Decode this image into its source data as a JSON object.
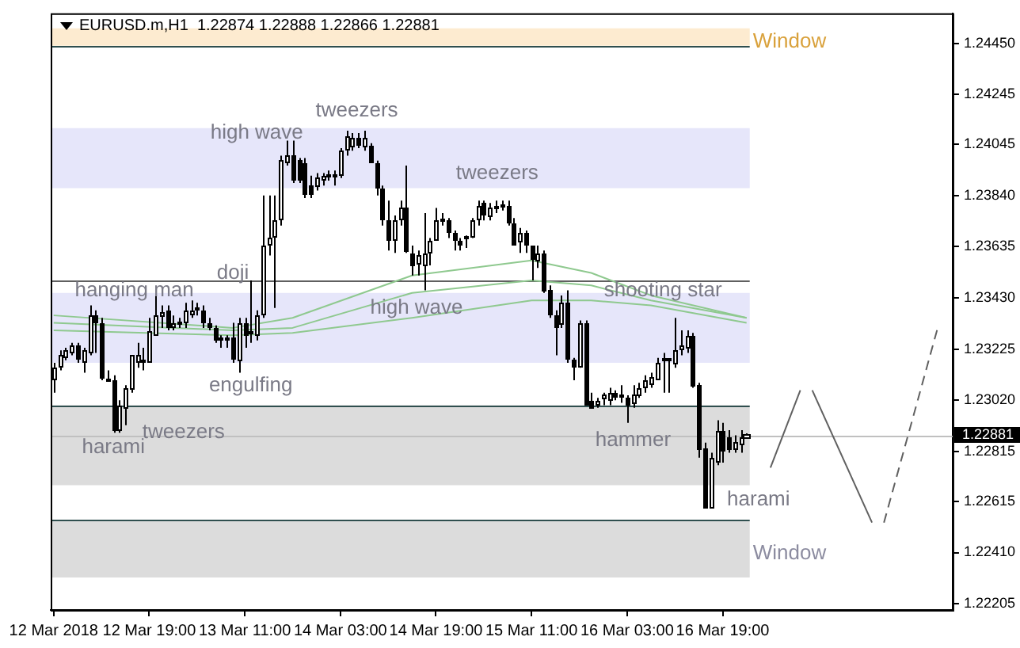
{
  "chart_data": {
    "type": "candlestick",
    "title": "EURUSD.m,H1  1.22874 1.22888 1.22866 1.22881",
    "color": "#000000",
    "colors": [
      "#ffffff",
      "#ffffff",
      "#ffffff",
      "#ffffff",
      "#000000",
      "#ffffff",
      "#ffffff",
      "#000000",
      "#000000",
      "#000000",
      "#000000",
      "#ffffff",
      "#ffffff",
      "#ffffff",
      "#ffffff",
      "#000000",
      "#ffffff",
      "#ffffff",
      "#ffffff",
      "#000000",
      "#ffffff",
      "#000000",
      "#ffffff",
      "#ffffff",
      "#000000",
      "#000000",
      "#000000",
      "#000000",
      "#000000",
      "#000000",
      "#000000",
      "#ffffff",
      "#000000",
      "#000000",
      "#ffffff",
      "#ffffff",
      "#ffffff",
      "#ffffff",
      "#ffffff",
      "#ffffff",
      "#000000",
      "#000000",
      "#000000",
      "#000000",
      "#ffffff",
      "#ffffff",
      "#000000",
      "#000000",
      "#ffffff",
      "#ffffff",
      "#ffffff",
      "#000000",
      "#ffffff",
      "#000000",
      "#000000",
      "#000000",
      "#000000",
      "#ffffff",
      "#ffffff",
      "#000000",
      "#000000",
      "#ffffff",
      "#ffffff",
      "#ffffff",
      "#ffffff",
      "#000000",
      "#000000",
      "#000000",
      "#000000",
      "#000000",
      "#ffffff",
      "#ffffff",
      "#000000",
      "#ffffff",
      "#000000",
      "#000000",
      "#000000",
      "#000000",
      "#ffffff",
      "#000000",
      "#000000",
      "#ffffff",
      "#000000",
      "#000000",
      "#000000",
      "#ffffff",
      "#000000",
      "#000000",
      "#ffffff",
      "#000000",
      "#000000",
      "#ffffff",
      "#ffffff",
      "#ffffff",
      "#000000",
      "#000000",
      "#000000",
      "#ffffff",
      "#ffffff",
      "#ffffff",
      "#ffffff",
      "#ffffff",
      "#000000",
      "#000000",
      "#ffffff",
      "#ffffff",
      "#ffffff",
      "#000000",
      "#000000",
      "#000000",
      "#ffffff",
      "#ffffff",
      "#000000",
      "#000000",
      "#ffffff",
      "#ffffff",
      "#ffffff",
      null,
      null,
      null,
      null,
      null,
      null,
      null,
      null,
      null,
      null,
      null,
      null,
      null,
      null,
      null,
      null,
      null,
      null,
      null,
      null,
      null,
      null,
      null,
      null,
      null,
      null,
      null,
      null,
      null,
      null,
      null,
      null,
      null,
      null
    ],
    "categories": [
      "12 Mar 2018",
      null,
      null,
      null,
      null,
      null,
      null,
      null,
      null,
      null,
      null,
      null,
      null,
      null,
      null,
      null,
      "12 Mar 19:00",
      null,
      null,
      null,
      null,
      null,
      null,
      null,
      null,
      null,
      null,
      null,
      null,
      null,
      null,
      null,
      "13 Mar 11:00",
      null,
      null,
      null,
      null,
      null,
      null,
      null,
      null,
      null,
      null,
      null,
      null,
      null,
      null,
      null,
      "14 Mar 03:00",
      null,
      null,
      null,
      null,
      null,
      null,
      null,
      null,
      null,
      null,
      null,
      null,
      null,
      null,
      null,
      "14 Mar 19:00",
      null,
      null,
      null,
      null,
      null,
      null,
      null,
      null,
      null,
      null,
      null,
      null,
      null,
      null,
      null,
      "15 Mar 11:00",
      null,
      null,
      null,
      null,
      null,
      null,
      null,
      null,
      null,
      null,
      null,
      null,
      null,
      null,
      null,
      "16 Mar 03:00",
      null,
      null,
      null,
      null,
      null,
      null,
      null,
      null,
      null,
      null,
      null,
      null,
      null,
      null,
      null,
      "16 Mar 19:00",
      null,
      null,
      null,
      null,
      null,
      null,
      null,
      null,
      null,
      null,
      null,
      null,
      null,
      null,
      null,
      null,
      null,
      null,
      null,
      null,
      null,
      null,
      null,
      null,
      null,
      null,
      null,
      null,
      null,
      null,
      null,
      null,
      null,
      null,
      null,
      null,
      null,
      null
    ],
    "ohlc": [
      [
        1.231,
        1.2317,
        1.2305,
        1.2315
      ],
      [
        1.2315,
        1.2322,
        1.2314,
        1.232
      ],
      [
        1.2319,
        1.2323,
        1.2318,
        1.2322
      ],
      [
        1.2321,
        1.2325,
        1.232,
        1.2324
      ],
      [
        1.2324,
        1.2325,
        1.2317,
        1.2318
      ],
      [
        1.2317,
        1.2323,
        1.2313,
        1.2322
      ],
      [
        1.2321,
        1.234,
        1.232,
        1.2336
      ],
      [
        1.2336,
        1.2338,
        1.2321,
        1.2333
      ],
      [
        1.2333,
        1.2335,
        1.231,
        1.2311
      ],
      [
        1.231,
        1.2314,
        1.231,
        1.231
      ],
      [
        1.231,
        1.2312,
        1.2289,
        1.229
      ],
      [
        1.229,
        1.2302,
        1.2289,
        1.23
      ],
      [
        1.2299,
        1.2308,
        1.2292,
        1.2307
      ],
      [
        1.2306,
        1.232,
        1.2305,
        1.232
      ],
      [
        1.2317,
        1.2325,
        1.2315,
        1.232
      ],
      [
        1.2318,
        1.2323,
        1.2314,
        1.2317
      ],
      [
        1.2317,
        1.2335,
        1.2317,
        1.233
      ],
      [
        1.2328,
        1.2344,
        1.2328,
        1.2336
      ],
      [
        1.2335,
        1.234,
        1.2331,
        1.2337
      ],
      [
        1.2338,
        1.234,
        1.233,
        1.2331
      ],
      [
        1.2331,
        1.2336,
        1.233,
        1.2333
      ],
      [
        1.2333,
        1.2335,
        1.2331,
        1.2333
      ],
      [
        1.2333,
        1.2341,
        1.2331,
        1.2338
      ],
      [
        1.2336,
        1.2342,
        1.2335,
        1.2338
      ],
      [
        1.2339,
        1.2341,
        1.2336,
        1.2338
      ],
      [
        1.2338,
        1.234,
        1.2331,
        1.2333
      ],
      [
        1.2333,
        1.2335,
        1.233,
        1.2331
      ],
      [
        1.2331,
        1.2332,
        1.2325,
        1.2326
      ],
      [
        1.2327,
        1.2328,
        1.2323,
        1.2326
      ],
      [
        1.2327,
        1.2328,
        1.2323,
        1.2326
      ],
      [
        1.2327,
        1.2333,
        1.2317,
        1.2318
      ],
      [
        1.2318,
        1.2335,
        1.2313,
        1.2333
      ],
      [
        1.2333,
        1.2335,
        1.2323,
        1.2328
      ],
      [
        1.2329,
        1.235,
        1.2325,
        1.2329
      ],
      [
        1.2328,
        1.2338,
        1.2326,
        1.2336
      ],
      [
        1.2336,
        1.2384,
        1.2335,
        1.2364
      ],
      [
        1.2364,
        1.2384,
        1.236,
        1.2367
      ],
      [
        1.2367,
        1.2384,
        1.2339,
        1.2374
      ],
      [
        1.2374,
        1.24,
        1.2372,
        1.2398
      ],
      [
        1.2397,
        1.2406,
        1.2396,
        1.24
      ],
      [
        1.24,
        1.2406,
        1.2389,
        1.239
      ],
      [
        1.2398,
        1.2399,
        1.2389,
        1.239
      ],
      [
        1.2397,
        1.2399,
        1.2383,
        1.2384
      ],
      [
        1.2388,
        1.2392,
        1.2383,
        1.2384
      ],
      [
        1.2387,
        1.2393,
        1.2386,
        1.2391
      ],
      [
        1.239,
        1.2393,
        1.2388,
        1.2392
      ],
      [
        1.2392,
        1.2394,
        1.239,
        1.2392
      ],
      [
        1.2392,
        1.2394,
        1.2388,
        1.2392
      ],
      [
        1.2392,
        1.2403,
        1.2391,
        1.2402
      ],
      [
        1.2402,
        1.241,
        1.24,
        1.2408
      ],
      [
        1.2403,
        1.2409,
        1.2402,
        1.2407
      ],
      [
        1.2407,
        1.2409,
        1.2403,
        1.2404
      ],
      [
        1.2403,
        1.241,
        1.2402,
        1.2407
      ],
      [
        1.2404,
        1.2405,
        1.2397,
        1.2397
      ],
      [
        1.2397,
        1.2398,
        1.2384,
        1.2387
      ],
      [
        1.2387,
        1.2388,
        1.2372,
        1.2374
      ],
      [
        1.2374,
        1.2382,
        1.2362,
        1.2366
      ],
      [
        1.2366,
        1.2376,
        1.2361,
        1.2374
      ],
      [
        1.2374,
        1.2382,
        1.2372,
        1.2379
      ],
      [
        1.2379,
        1.2396,
        1.2361,
        1.2361
      ],
      [
        1.2361,
        1.2364,
        1.2352,
        1.2356
      ],
      [
        1.2356,
        1.2362,
        1.2352,
        1.236
      ],
      [
        1.2356,
        1.2377,
        1.2346,
        1.2361
      ],
      [
        1.2361,
        1.2367,
        1.2356,
        1.2366
      ],
      [
        1.2366,
        1.2379,
        1.2366,
        1.2374
      ],
      [
        1.2374,
        1.2377,
        1.2372,
        1.2374
      ],
      [
        1.2374,
        1.2375,
        1.2367,
        1.2369
      ],
      [
        1.2369,
        1.237,
        1.2362,
        1.2366
      ],
      [
        1.2366,
        1.2367,
        1.2362,
        1.2364
      ],
      [
        1.2367,
        1.2368,
        1.2363,
        1.2367
      ],
      [
        1.2367,
        1.2375,
        1.2367,
        1.2374
      ],
      [
        1.2374,
        1.2382,
        1.2372,
        1.238
      ],
      [
        1.2381,
        1.2382,
        1.2374,
        1.2376
      ],
      [
        1.2375,
        1.2381,
        1.2374,
        1.2379
      ],
      [
        1.2379,
        1.2382,
        1.2377,
        1.2379
      ],
      [
        1.238,
        1.2382,
        1.2378,
        1.238
      ],
      [
        1.238,
        1.2382,
        1.2372,
        1.2373
      ],
      [
        1.2373,
        1.2375,
        1.2364,
        1.2364
      ],
      [
        1.2365,
        1.2371,
        1.2361,
        1.2369
      ],
      [
        1.2369,
        1.237,
        1.2361,
        1.2364
      ],
      [
        1.2364,
        1.2364,
        1.235,
        1.2358
      ],
      [
        1.2358,
        1.2364,
        1.2355,
        1.2361
      ],
      [
        1.2361,
        1.2362,
        1.2345,
        1.2346
      ],
      [
        1.2346,
        1.2348,
        1.2335,
        1.2336
      ],
      [
        1.2336,
        1.2338,
        1.232,
        1.2331
      ],
      [
        1.2332,
        1.2344,
        1.2331,
        1.2341
      ],
      [
        1.2341,
        1.2346,
        1.2317,
        1.2318
      ],
      [
        1.2318,
        1.2319,
        1.231,
        1.2315
      ],
      [
        1.2315,
        1.2334,
        1.2315,
        1.2333
      ],
      [
        1.2333,
        1.2334,
        1.23,
        1.23
      ],
      [
        1.2302,
        1.2305,
        1.2299,
        1.2299
      ],
      [
        1.23,
        1.2303,
        1.2299,
        1.2302
      ],
      [
        1.2302,
        1.2305,
        1.23,
        1.2304
      ],
      [
        1.2302,
        1.2307,
        1.23,
        1.2305
      ],
      [
        1.2305,
        1.2306,
        1.2302,
        1.2303
      ],
      [
        1.2304,
        1.2308,
        1.2301,
        1.2303
      ],
      [
        1.2303,
        1.2304,
        1.2293,
        1.23
      ],
      [
        1.23,
        1.2308,
        1.2299,
        1.2304
      ],
      [
        1.2304,
        1.2309,
        1.2303,
        1.2307
      ],
      [
        1.2307,
        1.2312,
        1.2305,
        1.231
      ],
      [
        1.2308,
        1.2313,
        1.2307,
        1.2311
      ],
      [
        1.231,
        1.2319,
        1.231,
        1.2317
      ],
      [
        1.2318,
        1.2321,
        1.2305,
        1.2318
      ],
      [
        1.2318,
        1.2318,
        1.2305,
        1.2318
      ],
      [
        1.2316,
        1.2335,
        1.2315,
        1.2322
      ],
      [
        1.2322,
        1.233,
        1.232,
        1.2324
      ],
      [
        1.2323,
        1.233,
        1.2321,
        1.2328
      ],
      [
        1.2328,
        1.2329,
        1.2307,
        1.2308
      ],
      [
        1.2308,
        1.2309,
        1.2279,
        1.2282
      ],
      [
        1.2283,
        1.2285,
        1.2259,
        1.2259
      ],
      [
        1.2259,
        1.2281,
        1.2259,
        1.2279
      ],
      [
        1.2277,
        1.2294,
        1.2276,
        1.229
      ],
      [
        1.229,
        1.2293,
        1.2277,
        1.2282
      ],
      [
        1.2287,
        1.229,
        1.2281,
        1.2282
      ],
      [
        1.2282,
        1.2288,
        1.2281,
        1.2285
      ],
      [
        1.2284,
        1.229,
        1.2281,
        1.2287
      ],
      [
        1.22874,
        1.22888,
        1.22866,
        1.22881
      ],
      null,
      null,
      null,
      null,
      null,
      null,
      null,
      null,
      null,
      null,
      null,
      null,
      null,
      null,
      null,
      null,
      null,
      null,
      null,
      null,
      null,
      null,
      null,
      null,
      null,
      null,
      null,
      null,
      null,
      null,
      null,
      null,
      null,
      null
    ],
    "series": [
      {
        "type": "line",
        "color": "#8fc98f",
        "values": [
          1.2336,
          null,
          null,
          null,
          null,
          null,
          null,
          null,
          null,
          null,
          null,
          null,
          null,
          null,
          null,
          null,
          null,
          null,
          null,
          null,
          null,
          null,
          null,
          null,
          null,
          null,
          null,
          null,
          null,
          null,
          1.2331,
          null,
          null,
          null,
          null,
          null,
          null,
          null,
          null,
          null,
          1.2335,
          null,
          null,
          null,
          null,
          null,
          null,
          null,
          null,
          null,
          null,
          null,
          null,
          null,
          null,
          null,
          null,
          null,
          null,
          null,
          1.2352,
          null,
          null,
          null,
          null,
          null,
          null,
          null,
          null,
          null,
          null,
          null,
          null,
          null,
          null,
          null,
          null,
          null,
          null,
          null,
          1.2358,
          null,
          null,
          null,
          null,
          null,
          null,
          null,
          null,
          null,
          1.2353,
          null,
          null,
          null,
          null,
          null,
          null,
          null,
          null,
          null,
          1.2344,
          null,
          null,
          null,
          null,
          null,
          null,
          null,
          null,
          null,
          null,
          null,
          null,
          null,
          null,
          null,
          1.2335,
          null,
          null,
          null,
          null,
          null,
          null,
          null,
          null,
          null,
          null,
          null,
          null,
          null,
          null,
          null,
          null,
          null,
          null,
          null,
          null,
          null,
          null,
          null,
          null,
          null,
          null,
          null,
          null,
          null,
          null,
          null,
          null,
          null,
          null
        ]
      },
      {
        "type": "line",
        "color": "#8fc98f",
        "values": [
          1.2333,
          null,
          null,
          null,
          null,
          null,
          null,
          null,
          null,
          null,
          null,
          null,
          null,
          null,
          null,
          null,
          null,
          null,
          null,
          null,
          null,
          null,
          null,
          null,
          null,
          null,
          null,
          null,
          null,
          null,
          1.233,
          null,
          null,
          null,
          null,
          null,
          null,
          null,
          null,
          null,
          1.2331,
          null,
          null,
          null,
          null,
          null,
          null,
          null,
          null,
          null,
          null,
          null,
          null,
          null,
          null,
          null,
          null,
          null,
          null,
          null,
          1.2345,
          null,
          null,
          null,
          null,
          null,
          null,
          null,
          null,
          null,
          null,
          null,
          null,
          null,
          null,
          null,
          null,
          null,
          null,
          null,
          1.235,
          null,
          null,
          null,
          null,
          null,
          null,
          null,
          null,
          null,
          1.2348,
          null,
          null,
          null,
          null,
          null,
          null,
          null,
          null,
          null,
          1.2342,
          null,
          null,
          null,
          null,
          null,
          null,
          null,
          null,
          null,
          null,
          null,
          null,
          null,
          null,
          null,
          1.2335,
          null,
          null,
          null,
          null,
          null,
          null,
          null,
          null,
          null,
          null,
          null,
          null,
          null,
          null,
          null,
          null,
          null,
          null,
          null,
          null,
          null,
          null,
          null,
          null,
          null,
          null,
          null,
          null,
          null,
          null,
          null,
          null,
          null,
          null
        ]
      },
      {
        "type": "line",
        "color": "#8fc98f",
        "values": [
          1.233,
          null,
          null,
          null,
          null,
          null,
          null,
          null,
          null,
          null,
          null,
          null,
          null,
          null,
          null,
          null,
          null,
          null,
          null,
          null,
          null,
          null,
          null,
          null,
          null,
          null,
          null,
          null,
          null,
          null,
          1.2328,
          null,
          null,
          null,
          null,
          null,
          null,
          null,
          null,
          null,
          1.2329,
          null,
          null,
          null,
          null,
          null,
          null,
          null,
          null,
          null,
          null,
          null,
          null,
          null,
          null,
          null,
          null,
          null,
          null,
          null,
          1.2335,
          null,
          null,
          null,
          null,
          null,
          null,
          null,
          null,
          null,
          null,
          null,
          null,
          null,
          null,
          null,
          null,
          null,
          null,
          null,
          1.2342,
          null,
          null,
          null,
          null,
          null,
          null,
          null,
          null,
          null,
          1.2342,
          null,
          null,
          null,
          null,
          null,
          null,
          null,
          null,
          null,
          1.234,
          null,
          null,
          null,
          null,
          null,
          null,
          null,
          null,
          null,
          null,
          null,
          null,
          null,
          null,
          null,
          1.2333,
          null,
          null,
          null,
          null,
          null,
          null,
          null,
          null,
          null,
          null,
          null,
          null,
          null,
          null,
          null,
          null,
          null,
          null,
          null,
          null,
          null,
          null,
          null,
          null,
          null,
          null,
          null,
          null,
          null,
          null,
          null,
          null,
          null,
          null
        ]
      },
      {
        "type": "line",
        "color": "#606060",
        "values": [
          null,
          null,
          null,
          null,
          null,
          null,
          null,
          null,
          null,
          null,
          null,
          null,
          null,
          null,
          null,
          null,
          null,
          null,
          null,
          null,
          null,
          null,
          null,
          null,
          null,
          null,
          null,
          null,
          null,
          null,
          null,
          null,
          null,
          null,
          null,
          null,
          null,
          null,
          null,
          null,
          null,
          null,
          null,
          null,
          null,
          null,
          null,
          null,
          null,
          null,
          null,
          null,
          null,
          null,
          null,
          null,
          null,
          null,
          null,
          null,
          null,
          null,
          null,
          null,
          null,
          null,
          null,
          null,
          null,
          null,
          null,
          null,
          null,
          null,
          null,
          null,
          null,
          null,
          null,
          null,
          null,
          null,
          null,
          null,
          null,
          null,
          null,
          null,
          null,
          null,
          null,
          null,
          null,
          null,
          null,
          null,
          null,
          null,
          null,
          null,
          null,
          null,
          null,
          null,
          null,
          null,
          null,
          null,
          null,
          null,
          null,
          null,
          null,
          null,
          null,
          null,
          null,
          null,
          null,
          null,
          1.2275,
          null,
          null,
          null,
          null,
          1.2306,
          null,
          null,
          null,
          null,
          null,
          null,
          null,
          null,
          null,
          null,
          null,
          null,
          null,
          null,
          null,
          null,
          null,
          null,
          null,
          null,
          null,
          null,
          null,
          null,
          null
        ]
      },
      {
        "type": "line",
        "color": "#606060",
        "values": [
          null,
          null,
          null,
          null,
          null,
          null,
          null,
          null,
          null,
          null,
          null,
          null,
          null,
          null,
          null,
          null,
          null,
          null,
          null,
          null,
          null,
          null,
          null,
          null,
          null,
          null,
          null,
          null,
          null,
          null,
          null,
          null,
          null,
          null,
          null,
          null,
          null,
          null,
          null,
          null,
          null,
          null,
          null,
          null,
          null,
          null,
          null,
          null,
          null,
          null,
          null,
          null,
          null,
          null,
          null,
          null,
          null,
          null,
          null,
          null,
          null,
          null,
          null,
          null,
          null,
          null,
          null,
          null,
          null,
          null,
          null,
          null,
          null,
          null,
          null,
          null,
          null,
          null,
          null,
          null,
          null,
          null,
          null,
          null,
          null,
          null,
          null,
          null,
          null,
          null,
          null,
          null,
          null,
          null,
          null,
          null,
          null,
          null,
          null,
          null,
          null,
          null,
          null,
          null,
          null,
          null,
          null,
          null,
          null,
          null,
          null,
          null,
          null,
          null,
          null,
          null,
          null,
          null,
          null,
          null,
          null,
          null,
          null,
          null,
          null,
          null,
          null,
          1.2306,
          null,
          null,
          null,
          null,
          null,
          null,
          null,
          null,
          null,
          1.2253,
          null,
          null,
          null,
          null,
          null,
          null,
          null,
          null,
          null,
          null,
          null,
          null,
          null
        ]
      },
      {
        "type": "line",
        "color": "#606060",
        "line_style": "dashed",
        "values": [
          null,
          null,
          null,
          null,
          null,
          null,
          null,
          null,
          null,
          null,
          null,
          null,
          null,
          null,
          null,
          null,
          null,
          null,
          null,
          null,
          null,
          null,
          null,
          null,
          null,
          null,
          null,
          null,
          null,
          null,
          null,
          null,
          null,
          null,
          null,
          null,
          null,
          null,
          null,
          null,
          null,
          null,
          null,
          null,
          null,
          null,
          null,
          null,
          null,
          null,
          null,
          null,
          null,
          null,
          null,
          null,
          null,
          null,
          null,
          null,
          null,
          null,
          null,
          null,
          null,
          null,
          null,
          null,
          null,
          null,
          null,
          null,
          null,
          null,
          null,
          null,
          null,
          null,
          null,
          null,
          null,
          null,
          null,
          null,
          null,
          null,
          null,
          null,
          null,
          null,
          null,
          null,
          null,
          null,
          null,
          null,
          null,
          null,
          null,
          null,
          null,
          null,
          null,
          null,
          null,
          null,
          null,
          null,
          null,
          null,
          null,
          null,
          null,
          null,
          null,
          null,
          null,
          null,
          null,
          null,
          null,
          null,
          null,
          null,
          null,
          null,
          null,
          null,
          null,
          null,
          null,
          null,
          null,
          null,
          null,
          null,
          null,
          null,
          null,
          1.2253,
          null,
          null,
          null,
          null,
          null,
          null,
          null,
          null,
          1.2331,
          null,
          null
        ]
      }
    ],
    "bands": [
      {
        "axis": "y",
        "from": 1.2444,
        "to": 1.2451,
        "label": "Window",
        "color": "#fdebd0"
      },
      {
        "axis": "y",
        "from": 1.2387,
        "to": 1.2411,
        "color": "#e6e6fa"
      },
      {
        "axis": "y",
        "from": 1.2317,
        "to": 1.2345,
        "color": "#e6e6fa"
      },
      {
        "axis": "y",
        "from": 1.2268,
        "to": 1.23,
        "color": "#dcdcdc"
      },
      {
        "axis": "y",
        "from": 1.2231,
        "to": 1.2254,
        "label": "Window",
        "color": "#dcdcdc"
      }
    ],
    "ref_lines": [
      {
        "axis": "y",
        "value": 1.22881,
        "label": "1.22881",
        "color": "#c0c0c0"
      },
      {
        "axis": "y",
        "value": 1.235,
        "color": "#606060"
      },
      {
        "axis": "y",
        "value": 1.2444,
        "color": "#2f4f4f"
      },
      {
        "axis": "y",
        "value": 1.23,
        "color": "#2f4f4f"
      },
      {
        "axis": "y",
        "value": 1.2254,
        "color": "#2f4f4f"
      }
    ],
    "annotations": [
      "high wave",
      "tweezers",
      "tweezers",
      "hanging man",
      "doji",
      "high wave",
      "shooting star",
      "engulfing",
      "tweezers",
      "harami",
      "hammer",
      "harami"
    ],
    "ylim": [
      1.2218,
      1.2457
    ],
    "yticks": [
      {
        "value": 1.2445,
        "label": "1.24450"
      },
      {
        "value": 1.24245,
        "label": "1.24245"
      },
      {
        "value": 1.24045,
        "label": "1.24045"
      },
      {
        "value": 1.2384,
        "label": "1.23840"
      },
      {
        "value": 1.23635,
        "label": "1.23635"
      },
      {
        "value": 1.2343,
        "label": "1.23430"
      },
      {
        "value": 1.23225,
        "label": "1.23225"
      },
      {
        "value": 1.2302,
        "label": "1.23020"
      },
      {
        "value": 1.22815,
        "label": "1.22815"
      },
      {
        "value": 1.22615,
        "label": "1.22615"
      },
      {
        "value": 1.2241,
        "label": "1.22410"
      },
      {
        "value": 1.22205,
        "label": "1.22205"
      }
    ],
    "marker": "none"
  }
}
